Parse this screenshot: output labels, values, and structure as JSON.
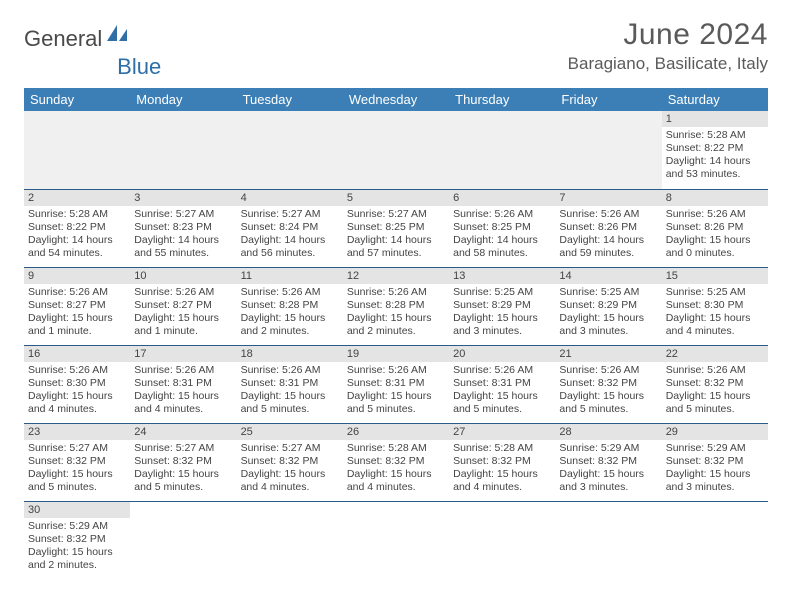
{
  "brand": {
    "part1": "General",
    "part2": "Blue"
  },
  "title": "June 2024",
  "location": "Baragiano, Basilicate, Italy",
  "colors": {
    "headerBg": "#3b7fb6",
    "headerText": "#ffffff",
    "dayBarBg": "#e4e4e4",
    "borderColor": "#2a5a8a",
    "bodyText": "#444444",
    "logoBlue": "#2f6fa7"
  },
  "weekdays": [
    "Sunday",
    "Monday",
    "Tuesday",
    "Wednesday",
    "Thursday",
    "Friday",
    "Saturday"
  ],
  "weeks": [
    [
      null,
      null,
      null,
      null,
      null,
      null,
      {
        "n": "1",
        "sr": "Sunrise: 5:28 AM",
        "ss": "Sunset: 8:22 PM",
        "dl": "Daylight: 14 hours and 53 minutes."
      }
    ],
    [
      {
        "n": "2",
        "sr": "Sunrise: 5:28 AM",
        "ss": "Sunset: 8:22 PM",
        "dl": "Daylight: 14 hours and 54 minutes."
      },
      {
        "n": "3",
        "sr": "Sunrise: 5:27 AM",
        "ss": "Sunset: 8:23 PM",
        "dl": "Daylight: 14 hours and 55 minutes."
      },
      {
        "n": "4",
        "sr": "Sunrise: 5:27 AM",
        "ss": "Sunset: 8:24 PM",
        "dl": "Daylight: 14 hours and 56 minutes."
      },
      {
        "n": "5",
        "sr": "Sunrise: 5:27 AM",
        "ss": "Sunset: 8:25 PM",
        "dl": "Daylight: 14 hours and 57 minutes."
      },
      {
        "n": "6",
        "sr": "Sunrise: 5:26 AM",
        "ss": "Sunset: 8:25 PM",
        "dl": "Daylight: 14 hours and 58 minutes."
      },
      {
        "n": "7",
        "sr": "Sunrise: 5:26 AM",
        "ss": "Sunset: 8:26 PM",
        "dl": "Daylight: 14 hours and 59 minutes."
      },
      {
        "n": "8",
        "sr": "Sunrise: 5:26 AM",
        "ss": "Sunset: 8:26 PM",
        "dl": "Daylight: 15 hours and 0 minutes."
      }
    ],
    [
      {
        "n": "9",
        "sr": "Sunrise: 5:26 AM",
        "ss": "Sunset: 8:27 PM",
        "dl": "Daylight: 15 hours and 1 minute."
      },
      {
        "n": "10",
        "sr": "Sunrise: 5:26 AM",
        "ss": "Sunset: 8:27 PM",
        "dl": "Daylight: 15 hours and 1 minute."
      },
      {
        "n": "11",
        "sr": "Sunrise: 5:26 AM",
        "ss": "Sunset: 8:28 PM",
        "dl": "Daylight: 15 hours and 2 minutes."
      },
      {
        "n": "12",
        "sr": "Sunrise: 5:26 AM",
        "ss": "Sunset: 8:28 PM",
        "dl": "Daylight: 15 hours and 2 minutes."
      },
      {
        "n": "13",
        "sr": "Sunrise: 5:25 AM",
        "ss": "Sunset: 8:29 PM",
        "dl": "Daylight: 15 hours and 3 minutes."
      },
      {
        "n": "14",
        "sr": "Sunrise: 5:25 AM",
        "ss": "Sunset: 8:29 PM",
        "dl": "Daylight: 15 hours and 3 minutes."
      },
      {
        "n": "15",
        "sr": "Sunrise: 5:25 AM",
        "ss": "Sunset: 8:30 PM",
        "dl": "Daylight: 15 hours and 4 minutes."
      }
    ],
    [
      {
        "n": "16",
        "sr": "Sunrise: 5:26 AM",
        "ss": "Sunset: 8:30 PM",
        "dl": "Daylight: 15 hours and 4 minutes."
      },
      {
        "n": "17",
        "sr": "Sunrise: 5:26 AM",
        "ss": "Sunset: 8:31 PM",
        "dl": "Daylight: 15 hours and 4 minutes."
      },
      {
        "n": "18",
        "sr": "Sunrise: 5:26 AM",
        "ss": "Sunset: 8:31 PM",
        "dl": "Daylight: 15 hours and 5 minutes."
      },
      {
        "n": "19",
        "sr": "Sunrise: 5:26 AM",
        "ss": "Sunset: 8:31 PM",
        "dl": "Daylight: 15 hours and 5 minutes."
      },
      {
        "n": "20",
        "sr": "Sunrise: 5:26 AM",
        "ss": "Sunset: 8:31 PM",
        "dl": "Daylight: 15 hours and 5 minutes."
      },
      {
        "n": "21",
        "sr": "Sunrise: 5:26 AM",
        "ss": "Sunset: 8:32 PM",
        "dl": "Daylight: 15 hours and 5 minutes."
      },
      {
        "n": "22",
        "sr": "Sunrise: 5:26 AM",
        "ss": "Sunset: 8:32 PM",
        "dl": "Daylight: 15 hours and 5 minutes."
      }
    ],
    [
      {
        "n": "23",
        "sr": "Sunrise: 5:27 AM",
        "ss": "Sunset: 8:32 PM",
        "dl": "Daylight: 15 hours and 5 minutes."
      },
      {
        "n": "24",
        "sr": "Sunrise: 5:27 AM",
        "ss": "Sunset: 8:32 PM",
        "dl": "Daylight: 15 hours and 5 minutes."
      },
      {
        "n": "25",
        "sr": "Sunrise: 5:27 AM",
        "ss": "Sunset: 8:32 PM",
        "dl": "Daylight: 15 hours and 4 minutes."
      },
      {
        "n": "26",
        "sr": "Sunrise: 5:28 AM",
        "ss": "Sunset: 8:32 PM",
        "dl": "Daylight: 15 hours and 4 minutes."
      },
      {
        "n": "27",
        "sr": "Sunrise: 5:28 AM",
        "ss": "Sunset: 8:32 PM",
        "dl": "Daylight: 15 hours and 4 minutes."
      },
      {
        "n": "28",
        "sr": "Sunrise: 5:29 AM",
        "ss": "Sunset: 8:32 PM",
        "dl": "Daylight: 15 hours and 3 minutes."
      },
      {
        "n": "29",
        "sr": "Sunrise: 5:29 AM",
        "ss": "Sunset: 8:32 PM",
        "dl": "Daylight: 15 hours and 3 minutes."
      }
    ],
    [
      {
        "n": "30",
        "sr": "Sunrise: 5:29 AM",
        "ss": "Sunset: 8:32 PM",
        "dl": "Daylight: 15 hours and 2 minutes."
      },
      null,
      null,
      null,
      null,
      null,
      null
    ]
  ]
}
